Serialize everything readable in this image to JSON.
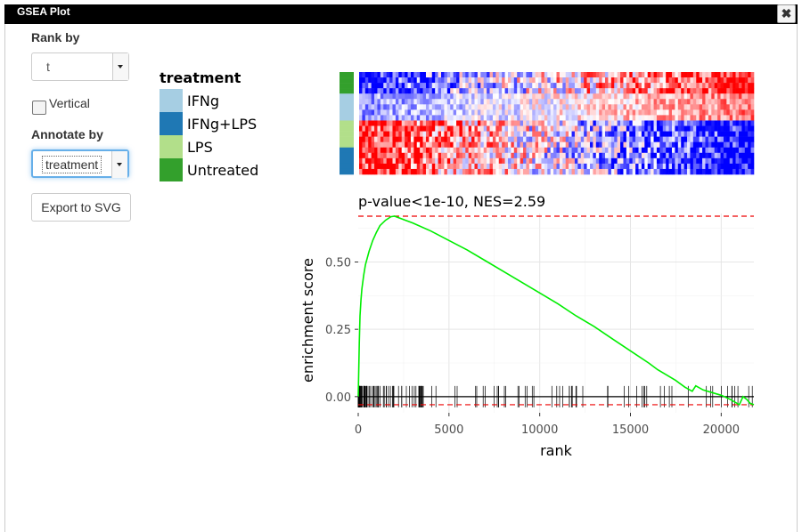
{
  "window": {
    "title": "GSEA Plot",
    "close_glyph": "✖"
  },
  "controls": {
    "rank_by_label": "Rank by",
    "rank_by_value": "t",
    "vertical_label": "Vertical",
    "annotate_by_label": "Annotate by",
    "annotate_by_value": "treatment",
    "export_label": "Export to SVG"
  },
  "legend": {
    "title": "treatment",
    "items": [
      {
        "label": "IFNg",
        "color": "#a6cee3"
      },
      {
        "label": "IFNg+LPS",
        "color": "#1f78b4"
      },
      {
        "label": "LPS",
        "color": "#b2df8a"
      },
      {
        "label": "Untreated",
        "color": "#33a02c"
      }
    ]
  },
  "heatmap": {
    "annotation_colors": [
      "#33a02c",
      "#33a02c",
      "#33a02c",
      "#33a02c",
      "#a6cee3",
      "#a6cee3",
      "#a6cee3",
      "#a6cee3",
      "#a6cee3",
      "#b2df8a",
      "#b2df8a",
      "#b2df8a",
      "#b2df8a",
      "#b2df8a",
      "#1f78b4",
      "#1f78b4",
      "#1f78b4",
      "#1f78b4",
      "#1f78b4"
    ]
  },
  "chart_data": {
    "type": "line",
    "title": "p-value<1e-10, NES=2.59",
    "xlabel": "rank",
    "ylabel": "enrichment score",
    "xlim": [
      0,
      21800
    ],
    "ylim": [
      -0.06,
      0.68
    ],
    "x_ticks": [
      0,
      5000,
      10000,
      15000,
      20000
    ],
    "x_tick_labels": [
      "0",
      "5000",
      "10000",
      "15000",
      "20000"
    ],
    "y_ticks": [
      0,
      0.25,
      0.5
    ],
    "y_tick_labels": [
      "0.00",
      "0.25",
      "0.50"
    ],
    "max_es": 0.67,
    "min_es": -0.03,
    "grid": true,
    "colors": {
      "curve": "#00ee00",
      "bounds": "#ee0000",
      "ticks": "#000000"
    },
    "series": [
      {
        "x": [
          0,
          30,
          60,
          100,
          150,
          200,
          300,
          400,
          600,
          800,
          1000,
          1200,
          1500,
          1800,
          2000,
          3000,
          4000,
          5000,
          6000,
          7000,
          8000,
          9000,
          10000,
          11000,
          12000,
          13000,
          14000,
          15000,
          16000,
          16500,
          17000,
          17500,
          18000,
          18400,
          18600,
          19000,
          19500,
          20000,
          20500,
          21000,
          21200,
          21400,
          21600,
          21800
        ],
        "y": [
          0.0,
          0.1,
          0.2,
          0.3,
          0.36,
          0.4,
          0.45,
          0.49,
          0.54,
          0.58,
          0.61,
          0.635,
          0.655,
          0.668,
          0.67,
          0.645,
          0.615,
          0.58,
          0.545,
          0.505,
          0.465,
          0.425,
          0.385,
          0.345,
          0.3,
          0.26,
          0.215,
          0.17,
          0.125,
          0.1,
          0.08,
          0.06,
          0.035,
          0.02,
          0.04,
          0.025,
          0.015,
          0.005,
          -0.01,
          -0.03,
          0.0,
          -0.01,
          -0.025,
          -0.03
        ]
      }
    ],
    "hits_note": "gene set member ranks shown as vertical ticks at y=0"
  }
}
